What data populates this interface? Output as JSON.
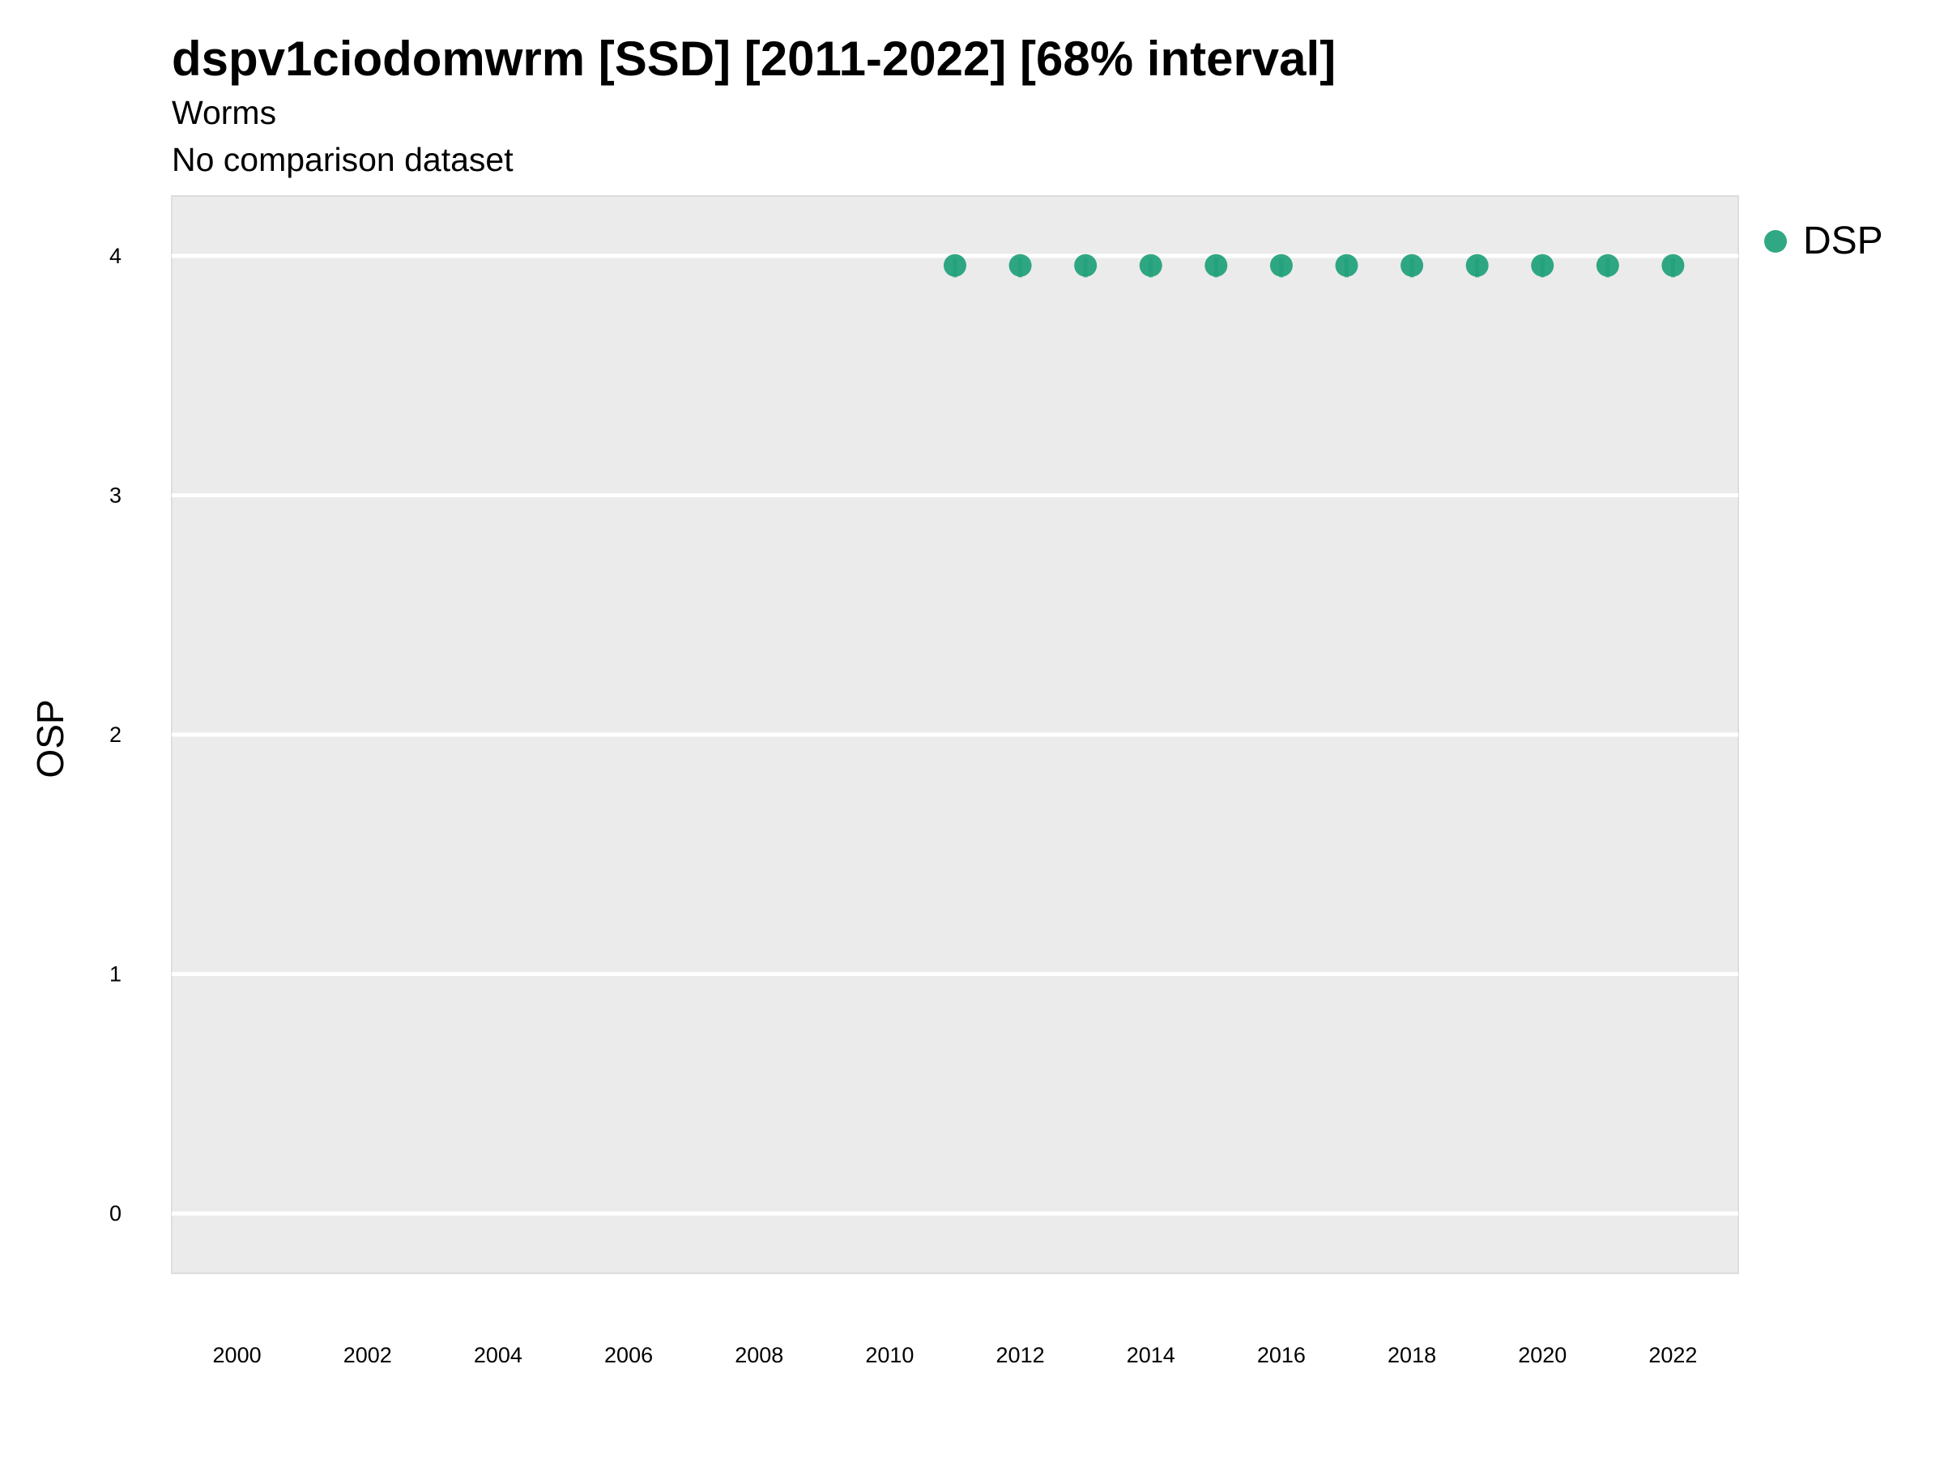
{
  "chart_data": {
    "type": "scatter",
    "title": "dspv1ciodomwrm [SSD] [2011-2022] [68% interval]",
    "subtitle": "Worms",
    "caption": "No comparison dataset",
    "xlabel": "",
    "ylabel": "OSP",
    "xlim": [
      1999,
      2023
    ],
    "ylim": [
      -0.25,
      4.25
    ],
    "x_ticks": [
      2000,
      2002,
      2004,
      2006,
      2008,
      2010,
      2012,
      2014,
      2016,
      2018,
      2020,
      2022
    ],
    "y_ticks": [
      0,
      1,
      2,
      3,
      4
    ],
    "grid": true,
    "legend_position": "right",
    "series": [
      {
        "name": "DSP",
        "color": "#1b9e77",
        "x": [
          2011,
          2012,
          2013,
          2014,
          2015,
          2016,
          2017,
          2018,
          2019,
          2020,
          2021,
          2022
        ],
        "y": [
          3.96,
          3.96,
          3.96,
          3.96,
          3.96,
          3.96,
          3.96,
          3.96,
          3.96,
          3.96,
          3.96,
          3.96
        ],
        "lower": [
          3.91,
          3.91,
          3.91,
          3.91,
          3.91,
          3.91,
          3.91,
          3.91,
          3.91,
          3.91,
          3.91,
          3.91
        ],
        "upper": [
          3.99,
          3.99,
          3.99,
          3.99,
          3.99,
          3.99,
          3.99,
          3.99,
          3.99,
          3.99,
          3.99,
          3.99
        ]
      }
    ]
  }
}
